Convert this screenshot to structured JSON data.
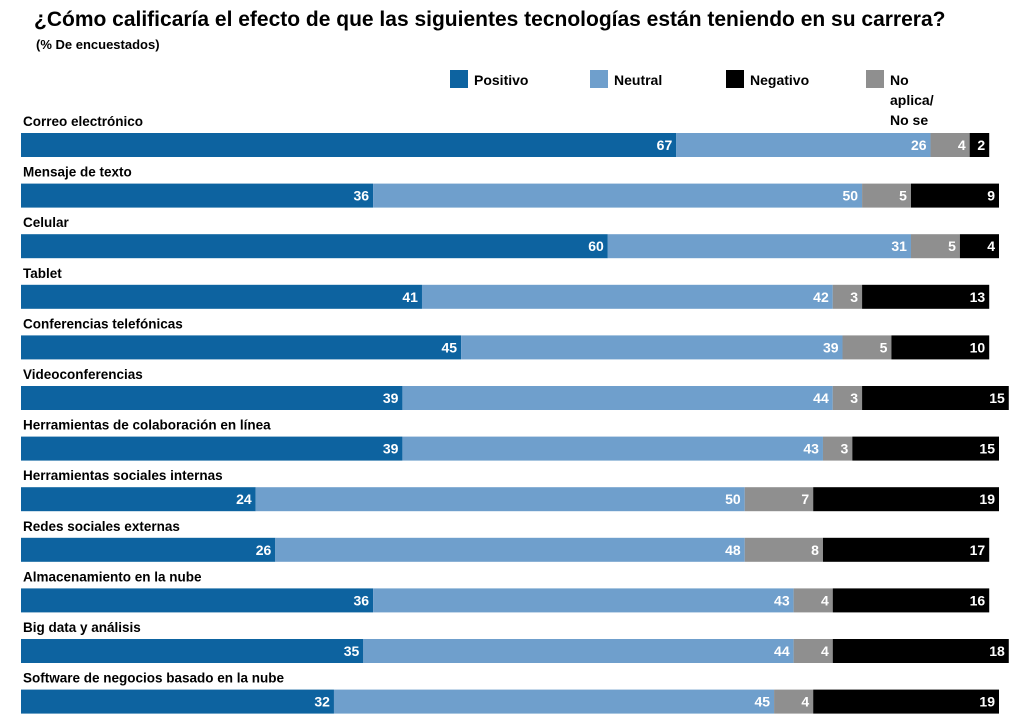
{
  "title": "¿Cómo calificaría el efecto de que las siguientes tecnologías están teniendo en su carrera?",
  "subtitle": "(% De encuestados)",
  "legend": [
    {
      "name": "Positivo",
      "color": "#0d63a0"
    },
    {
      "name": "Neutral",
      "color": "#6f9fcc"
    },
    {
      "name": "Negativo",
      "color": "#000000"
    },
    {
      "name": "No aplica/\nNo se",
      "color": "#8f8f8f"
    }
  ],
  "chart_data": {
    "type": "bar",
    "orientation": "horizontal",
    "stacked": true,
    "categories": [
      "Correo electrónico",
      "Mensaje de texto",
      "Celular",
      "Tablet",
      "Conferencias telefónicas",
      "Videoconferencias",
      "Herramientas de colaboración en línea",
      "Herramientas sociales internas",
      "Redes sociales externas",
      "Almacenamiento en la nube",
      "Big data y análisis",
      "Software de negocios basado en la nube"
    ],
    "series": [
      {
        "name": "Positivo",
        "color": "#0d63a0",
        "values": [
          67,
          36,
          60,
          41,
          45,
          39,
          39,
          24,
          26,
          36,
          35,
          32
        ]
      },
      {
        "name": "Neutral",
        "color": "#6f9fcc",
        "values": [
          26,
          50,
          31,
          42,
          39,
          44,
          43,
          50,
          48,
          43,
          44,
          45
        ]
      },
      {
        "name": "No aplica/ No se",
        "color": "#8f8f8f",
        "values": [
          4,
          5,
          5,
          3,
          5,
          3,
          3,
          7,
          8,
          4,
          4,
          4
        ]
      },
      {
        "name": "Negativo",
        "color": "#000000",
        "values": [
          2,
          9,
          4,
          13,
          10,
          15,
          15,
          19,
          17,
          16,
          18,
          19
        ]
      }
    ],
    "xlim": [
      0,
      100
    ],
    "grid": false,
    "legend_position": "top-right"
  }
}
